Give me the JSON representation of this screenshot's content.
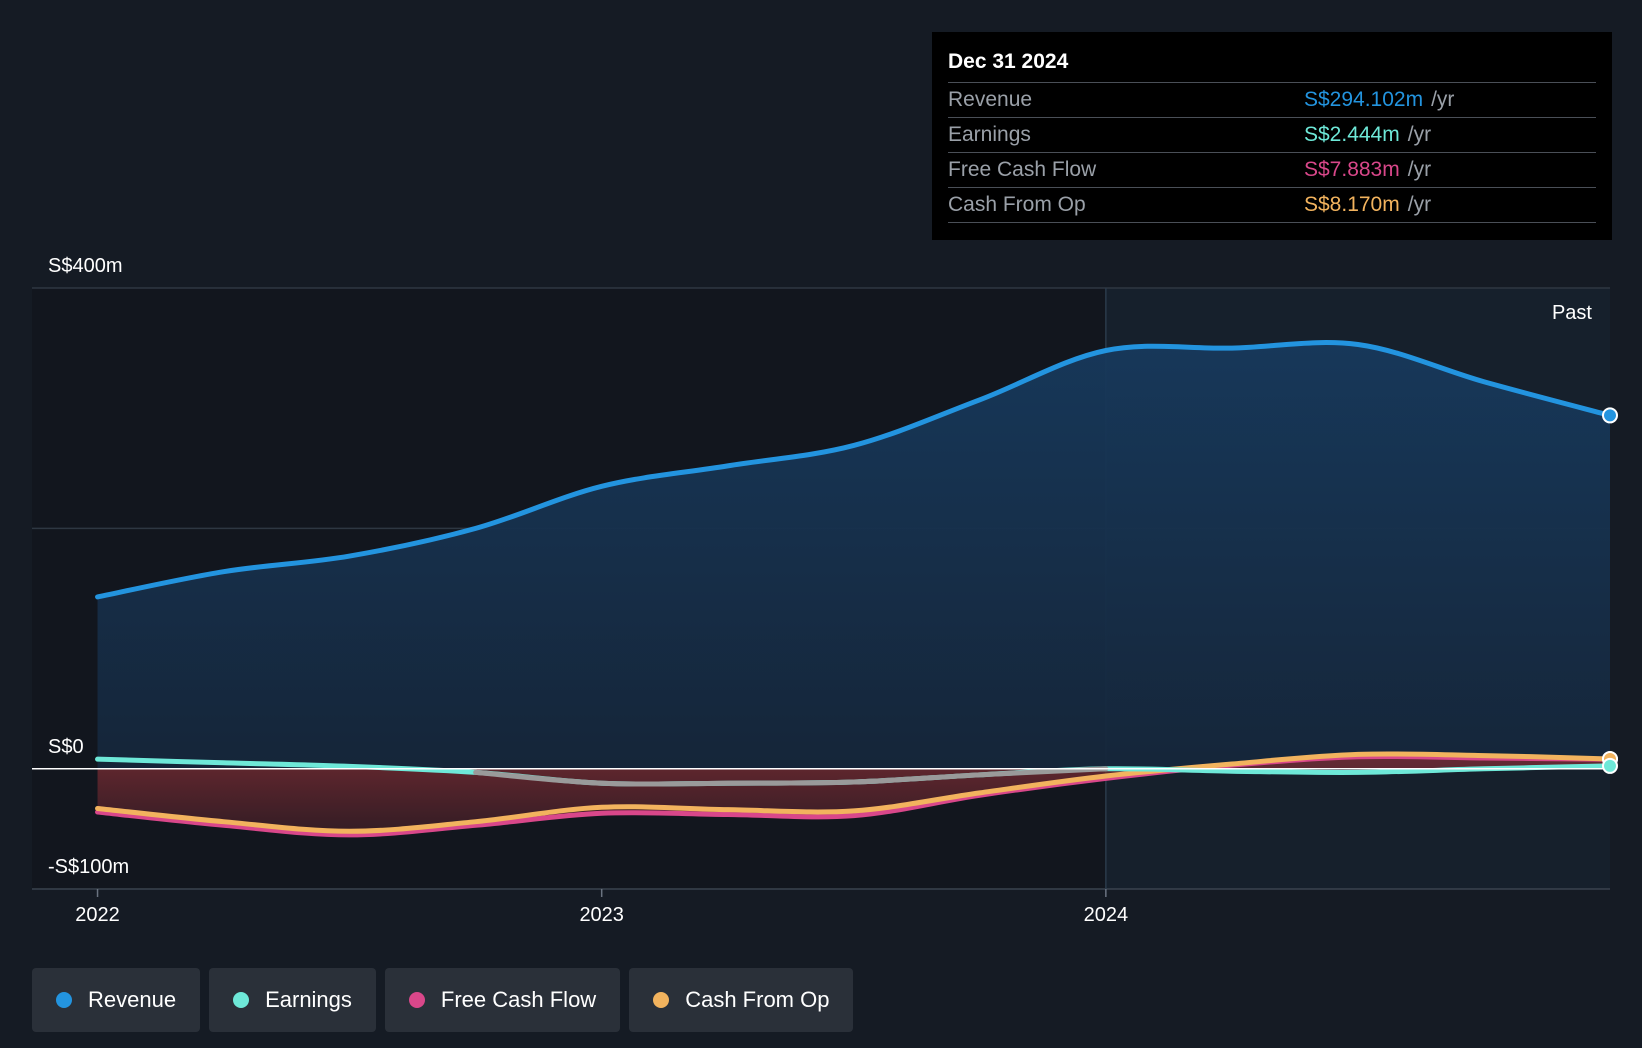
{
  "tooltip": {
    "date": "Dec 31 2024",
    "rows": [
      {
        "label": "Revenue",
        "value": "S$294.102m",
        "unit": "/yr",
        "color": "#2394df"
      },
      {
        "label": "Earnings",
        "value": "S$2.444m",
        "unit": "/yr",
        "color": "#6ee8d8"
      },
      {
        "label": "Free Cash Flow",
        "value": "S$7.883m",
        "unit": "/yr",
        "color": "#d9478a"
      },
      {
        "label": "Cash From Op",
        "value": "S$8.170m",
        "unit": "/yr",
        "color": "#f2b35e"
      }
    ]
  },
  "legend": [
    {
      "label": "Revenue",
      "color": "#2394df"
    },
    {
      "label": "Earnings",
      "color": "#6ee8d8"
    },
    {
      "label": "Free Cash Flow",
      "color": "#d9478a"
    },
    {
      "label": "Cash From Op",
      "color": "#f2b35e"
    }
  ],
  "chart_data": {
    "type": "area",
    "past_label": "Past",
    "y_ticks": [
      {
        "value": 400,
        "label": "S$400m"
      },
      {
        "value": 0,
        "label": "S$0"
      },
      {
        "value": -100,
        "label": "-S$100m"
      }
    ],
    "x_ticks": [
      {
        "value": 2022.0,
        "label": "2022"
      },
      {
        "value": 2023.0,
        "label": "2023"
      },
      {
        "value": 2024.0,
        "label": "2024"
      }
    ],
    "xlim": [
      2021.87,
      2025.0
    ],
    "ylim": [
      -100,
      400
    ],
    "gridlines": [
      400,
      200
    ],
    "past_start": 2024.0,
    "series": [
      {
        "name": "Revenue",
        "color": "#2394df",
        "points": [
          [
            2022.0,
            143
          ],
          [
            2022.25,
            164
          ],
          [
            2022.5,
            177
          ],
          [
            2022.75,
            200
          ],
          [
            2023.0,
            235
          ],
          [
            2023.25,
            252
          ],
          [
            2023.5,
            269
          ],
          [
            2023.75,
            307
          ],
          [
            2024.0,
            348
          ],
          [
            2024.25,
            350
          ],
          [
            2024.5,
            353
          ],
          [
            2024.75,
            322
          ],
          [
            2025.0,
            294
          ]
        ]
      },
      {
        "name": "Earnings",
        "color": "#6ee8d8",
        "points": [
          [
            2022.0,
            8
          ],
          [
            2022.25,
            5
          ],
          [
            2022.5,
            2
          ],
          [
            2022.75,
            -3
          ],
          [
            2023.0,
            -12
          ],
          [
            2023.25,
            -12
          ],
          [
            2023.5,
            -11
          ],
          [
            2023.75,
            -5
          ],
          [
            2024.0,
            0
          ],
          [
            2024.25,
            -2
          ],
          [
            2024.5,
            -3
          ],
          [
            2024.75,
            0
          ],
          [
            2025.0,
            2.4
          ]
        ]
      },
      {
        "name": "Free Cash Flow",
        "color": "#d9478a",
        "points": [
          [
            2022.0,
            -36
          ],
          [
            2022.25,
            -47
          ],
          [
            2022.5,
            -55
          ],
          [
            2022.75,
            -47
          ],
          [
            2023.0,
            -37
          ],
          [
            2023.25,
            -38
          ],
          [
            2023.5,
            -39
          ],
          [
            2023.75,
            -22
          ],
          [
            2024.0,
            -8
          ],
          [
            2024.25,
            3
          ],
          [
            2024.5,
            10
          ],
          [
            2024.75,
            9
          ],
          [
            2025.0,
            7.9
          ]
        ]
      },
      {
        "name": "Cash From Op",
        "color": "#f2b35e",
        "points": [
          [
            2022.0,
            -33
          ],
          [
            2022.25,
            -44
          ],
          [
            2022.5,
            -52
          ],
          [
            2022.75,
            -44
          ],
          [
            2023.0,
            -32
          ],
          [
            2023.25,
            -34
          ],
          [
            2023.5,
            -35
          ],
          [
            2023.75,
            -20
          ],
          [
            2024.0,
            -6
          ],
          [
            2024.25,
            4
          ],
          [
            2024.5,
            12
          ],
          [
            2024.75,
            11
          ],
          [
            2025.0,
            8.2
          ]
        ]
      }
    ]
  }
}
